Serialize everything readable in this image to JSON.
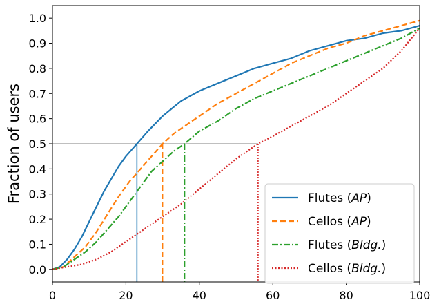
{
  "chart_data": {
    "type": "line",
    "title": "",
    "xlabel": "",
    "ylabel": "Fraction of users",
    "xlim": [
      0,
      100
    ],
    "ylim": [
      -0.05,
      1.05
    ],
    "xticks": [
      "0",
      "20",
      "40",
      "60",
      "80",
      "100"
    ],
    "xtick_values": [
      0,
      20,
      40,
      60,
      80,
      100
    ],
    "yticks": [
      "0.0",
      "0.1",
      "0.2",
      "0.3",
      "0.4",
      "0.5",
      "0.6",
      "0.7",
      "0.8",
      "0.9",
      "1.0"
    ],
    "ytick_values": [
      0,
      0.1,
      0.2,
      0.3,
      0.4,
      0.5,
      0.6,
      0.7,
      0.8,
      0.9,
      1.0
    ],
    "grid": false,
    "legend_position": "bottom-right",
    "median_reference_line": {
      "y": 0.5,
      "color": "#bfbfbf"
    },
    "series": [
      {
        "name_prefix": "Flutes (",
        "name_italic": "AP",
        "name_suffix": ")",
        "color": "#1f77b4",
        "dash": "solid",
        "median_x": 23,
        "x": [
          0,
          2,
          4,
          6,
          8,
          10,
          12,
          14,
          16,
          18,
          20,
          23,
          26,
          30,
          35,
          40,
          45,
          50,
          55,
          60,
          65,
          70,
          75,
          80,
          85,
          90,
          95,
          100
        ],
        "y": [
          0,
          0.01,
          0.04,
          0.08,
          0.13,
          0.19,
          0.25,
          0.31,
          0.36,
          0.41,
          0.45,
          0.5,
          0.55,
          0.61,
          0.67,
          0.71,
          0.74,
          0.77,
          0.8,
          0.82,
          0.84,
          0.87,
          0.89,
          0.91,
          0.92,
          0.94,
          0.95,
          0.97
        ]
      },
      {
        "name_prefix": "Cellos (",
        "name_italic": "AP",
        "name_suffix": ")",
        "color": "#ff7f0e",
        "dash": "dashed",
        "median_x": 30,
        "x": [
          0,
          3,
          6,
          9,
          12,
          15,
          18,
          21,
          24,
          27,
          30,
          33,
          36,
          40,
          45,
          50,
          55,
          60,
          65,
          70,
          75,
          80,
          85,
          90,
          95,
          100
        ],
        "y": [
          0,
          0.01,
          0.05,
          0.09,
          0.15,
          0.22,
          0.29,
          0.35,
          0.4,
          0.45,
          0.5,
          0.54,
          0.57,
          0.61,
          0.66,
          0.7,
          0.74,
          0.78,
          0.82,
          0.85,
          0.88,
          0.9,
          0.93,
          0.95,
          0.97,
          0.99
        ]
      },
      {
        "name_prefix": "Flutes (",
        "name_italic": "Bldg.",
        "name_suffix": ")",
        "color": "#2ca02c",
        "dash": "dashdot",
        "median_x": 36,
        "x": [
          0,
          3,
          6,
          9,
          12,
          15,
          18,
          21,
          24,
          27,
          30,
          33,
          36,
          40,
          45,
          50,
          55,
          60,
          65,
          70,
          75,
          80,
          85,
          90,
          95,
          100
        ],
        "y": [
          0,
          0.01,
          0.04,
          0.07,
          0.11,
          0.16,
          0.21,
          0.27,
          0.33,
          0.39,
          0.43,
          0.47,
          0.5,
          0.55,
          0.59,
          0.64,
          0.68,
          0.71,
          0.74,
          0.77,
          0.8,
          0.83,
          0.86,
          0.89,
          0.92,
          0.96
        ]
      },
      {
        "name_prefix": "Cellos (",
        "name_italic": "Bldg.",
        "name_suffix": ")",
        "color": "#d62728",
        "dash": "dotted",
        "median_x": 56,
        "x": [
          0,
          4,
          8,
          12,
          16,
          20,
          25,
          30,
          35,
          40,
          45,
          50,
          56,
          60,
          65,
          70,
          75,
          80,
          85,
          90,
          95,
          100
        ],
        "y": [
          0,
          0.01,
          0.02,
          0.04,
          0.07,
          0.11,
          0.16,
          0.21,
          0.26,
          0.32,
          0.38,
          0.44,
          0.5,
          0.53,
          0.57,
          0.61,
          0.65,
          0.7,
          0.75,
          0.8,
          0.87,
          0.96
        ]
      }
    ]
  }
}
